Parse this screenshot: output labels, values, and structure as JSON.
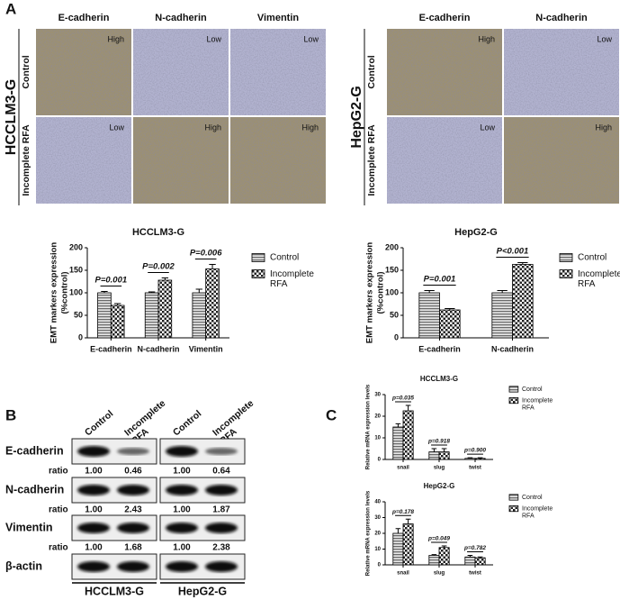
{
  "panel_labels": [
    "A",
    "B",
    "C"
  ],
  "micrographs": [
    {
      "group": "HCCLM3-G",
      "columns": [
        "E-cadherin",
        "N-cadherin",
        "Vimentin"
      ],
      "rows": [
        {
          "label": "Control",
          "levels": [
            "High",
            "Low",
            "Low"
          ]
        },
        {
          "label": "Incomplete RFA",
          "levels": [
            "Low",
            "High",
            "High"
          ]
        }
      ]
    },
    {
      "group": "HepG2-G",
      "columns": [
        "E-cadherin",
        "N-cadherin"
      ],
      "rows": [
        {
          "label": "Control",
          "levels": [
            "High",
            "Low"
          ]
        },
        {
          "label": "Incomplete RFA",
          "levels": [
            "Low",
            "High"
          ]
        }
      ]
    }
  ],
  "chart_data": [
    {
      "type": "bar",
      "title": "HCCLM3-G",
      "ylabel": [
        "EMT markers expression",
        "(%control)"
      ],
      "categories": [
        "E-cadherin",
        "N-cadherin",
        "Vimentin"
      ],
      "series": [
        {
          "name": "Control",
          "pattern": "stripes",
          "values": [
            100,
            100,
            100
          ],
          "errors": [
            3,
            2,
            8
          ]
        },
        {
          "name": "Incomplete RFA",
          "pattern": "checker",
          "values": [
            72,
            128,
            153
          ],
          "errors": [
            4,
            5,
            10
          ]
        }
      ],
      "annotations": [
        "P=0.001",
        "P=0.002",
        "P=0.006"
      ],
      "ylim": [
        0,
        200
      ],
      "yticks": [
        0,
        50,
        100,
        150,
        200
      ]
    },
    {
      "type": "bar",
      "title": "HepG2-G",
      "ylabel": [
        "EMT markers expression",
        "(%control)"
      ],
      "categories": [
        "E-cadherin",
        "N-cadherin"
      ],
      "series": [
        {
          "name": "Control",
          "pattern": "stripes",
          "values": [
            100,
            100
          ],
          "errors": [
            5,
            5
          ]
        },
        {
          "name": "Incomplete RFA",
          "pattern": "checker",
          "values": [
            62,
            163
          ],
          "errors": [
            3,
            4
          ]
        }
      ],
      "annotations": [
        "P=0.001",
        "P<0.001"
      ],
      "ylim": [
        0,
        200
      ],
      "yticks": [
        0,
        50,
        100,
        150,
        200
      ]
    },
    {
      "type": "bar",
      "title": "HCCLM3-G",
      "ylabel": [
        "Relative mRNA expression levels"
      ],
      "categories": [
        "snail",
        "slug",
        "twist"
      ],
      "series": [
        {
          "name": "Control",
          "pattern": "stripes",
          "values": [
            15,
            3.5,
            0.5
          ],
          "errors": [
            1.5,
            1.5,
            0.3
          ]
        },
        {
          "name": "Incomplete RFA",
          "pattern": "checker",
          "values": [
            22.5,
            3.5,
            0.5
          ],
          "errors": [
            2.5,
            1.5,
            0.3
          ]
        }
      ],
      "annotations": [
        "p=0.035",
        "p=0.918",
        "p=0.900"
      ],
      "ylim": [
        0,
        30
      ],
      "yticks": [
        0,
        10,
        20,
        30
      ]
    },
    {
      "type": "bar",
      "title": "HepG2-G",
      "ylabel": [
        "Relative mRNA expression levels"
      ],
      "categories": [
        "snail",
        "slug",
        "twist"
      ],
      "series": [
        {
          "name": "Control",
          "pattern": "stripes",
          "values": [
            20,
            6,
            5
          ],
          "errors": [
            3,
            0.5,
            1
          ]
        },
        {
          "name": "Incomplete RFA",
          "pattern": "checker",
          "values": [
            26,
            11,
            4.5
          ],
          "errors": [
            3,
            1,
            0.5
          ]
        }
      ],
      "annotations": [
        "p=0.178",
        "p=0.049",
        "p=0.782"
      ],
      "ylim": [
        0,
        40
      ],
      "yticks": [
        0,
        10,
        20,
        30,
        40
      ]
    }
  ],
  "western_blot": {
    "lanes": [
      "Control",
      "Incomplete RFA"
    ],
    "groups": [
      "HCCLM3-G",
      "HepG2-G"
    ],
    "ratio_label": "ratio",
    "rows": [
      {
        "label": "E-cadherin",
        "ratios": [
          [
            "1.00",
            "0.46"
          ],
          [
            "1.00",
            "0.64"
          ]
        ]
      },
      {
        "label": "N-cadherin",
        "ratios": [
          [
            "1.00",
            "2.43"
          ],
          [
            "1.00",
            "1.87"
          ]
        ]
      },
      {
        "label": "Vimentin",
        "ratios": [
          [
            "1.00",
            "1.68"
          ],
          [
            "1.00",
            "2.38"
          ]
        ]
      },
      {
        "label": "β-actin"
      }
    ]
  }
}
